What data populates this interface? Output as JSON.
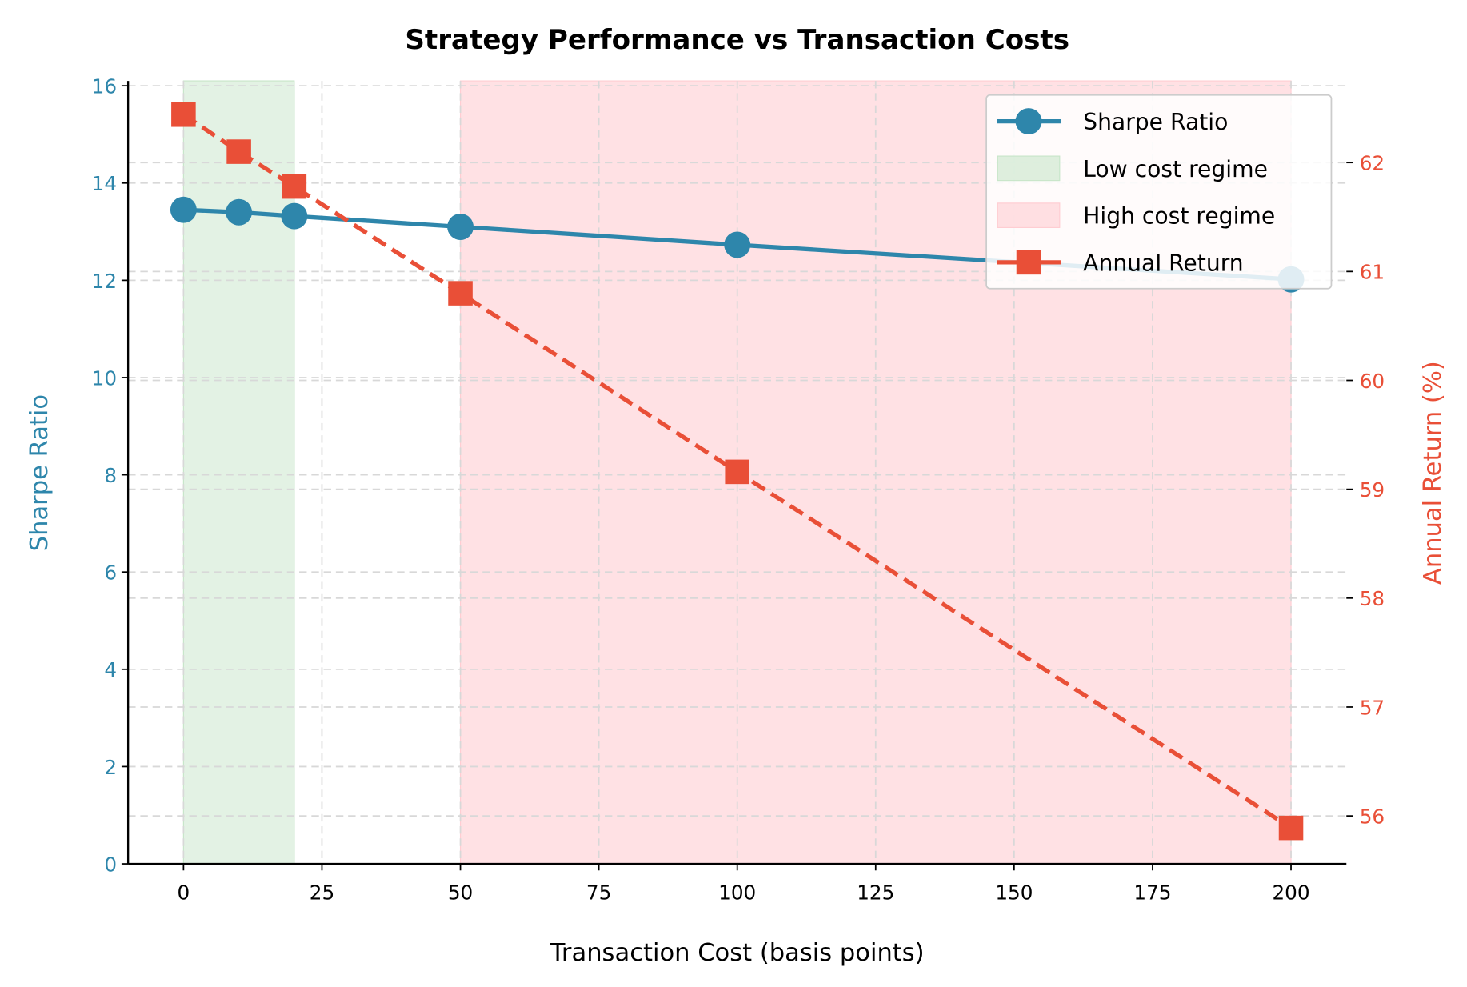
{
  "chart_data": {
    "type": "line",
    "title": "Strategy Performance vs Transaction Costs",
    "xlabel": "Transaction Cost (basis points)",
    "ylabel": "Sharpe Ratio",
    "y2label": "Annual Return (%)",
    "x": [
      0,
      10,
      20,
      50,
      100,
      200
    ],
    "xlim": [
      -10,
      210
    ],
    "ylim": [
      0,
      16.1
    ],
    "y2lim": [
      55.56,
      62.75
    ],
    "xticks": [
      "0",
      "25",
      "50",
      "75",
      "100",
      "125",
      "150",
      "175",
      "200"
    ],
    "yticks": [
      "0",
      "2",
      "4",
      "6",
      "8",
      "10",
      "12",
      "14",
      "16"
    ],
    "y2ticks": [
      "56",
      "57",
      "58",
      "59",
      "60",
      "61",
      "62"
    ],
    "grid": true,
    "legend_position": "top-right",
    "series": [
      {
        "name": "Sharpe Ratio",
        "axis": "left",
        "style": "solid",
        "marker": "circle",
        "color": "#2e86ab",
        "values": [
          13.45,
          13.4,
          13.32,
          13.1,
          12.73,
          12.02
        ]
      },
      {
        "name": "Annual Return",
        "axis": "right",
        "style": "dashed",
        "marker": "square",
        "color": "#e94f37",
        "values": [
          62.44,
          62.1,
          61.78,
          60.8,
          59.16,
          55.89
        ]
      }
    ],
    "spans": [
      {
        "name": "Low cost regime",
        "from": 0,
        "to": 20,
        "color": "#c8e6c9"
      },
      {
        "name": "High cost regime",
        "from": 50,
        "to": 200,
        "color": "#ffcdd2"
      }
    ]
  }
}
